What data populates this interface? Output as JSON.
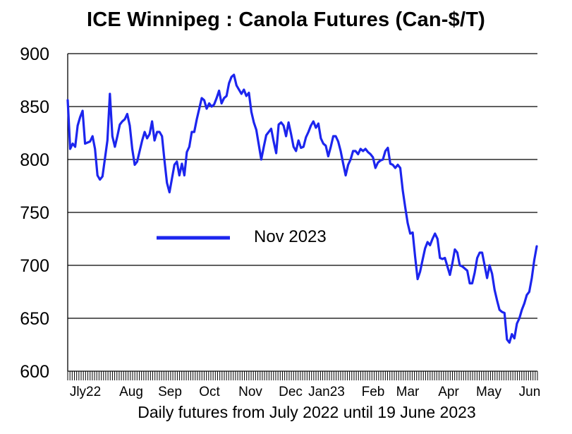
{
  "chart_data": {
    "type": "line",
    "title": "ICE Winnipeg : Canola Futures (Can-$/T)",
    "xlabel": "Daily futures from July 2022 until 19 June 2023",
    "ylabel": "",
    "ylim": [
      600,
      900
    ],
    "yticks": [
      "900",
      "850",
      "800",
      "750",
      "700",
      "650",
      "600"
    ],
    "xticks": [
      "Jly22",
      "Aug",
      "Sep",
      "Oct",
      "Nov",
      "Dec",
      "Jan23",
      "Feb",
      "Mar",
      "Apr",
      "May",
      "Jun"
    ],
    "grid": true,
    "legend_position": "center-left",
    "series": [
      {
        "name": "Nov 2023",
        "color": "#1c25ee",
        "values": [
          856,
          810,
          815,
          812,
          832,
          840,
          846,
          815,
          816,
          817,
          822,
          810,
          785,
          781,
          784,
          801,
          818,
          862,
          822,
          812,
          822,
          833,
          836,
          838,
          843,
          832,
          810,
          795,
          798,
          808,
          818,
          826,
          820,
          824,
          836,
          818,
          826,
          826,
          822,
          799,
          778,
          769,
          782,
          795,
          798,
          785,
          796,
          785,
          807,
          812,
          826,
          826,
          838,
          848,
          858,
          856,
          848,
          853,
          850,
          852,
          858,
          865,
          853,
          858,
          860,
          872,
          878,
          880,
          870,
          866,
          862,
          866,
          860,
          863,
          845,
          835,
          828,
          814,
          800,
          812,
          823,
          826,
          829,
          817,
          806,
          833,
          835,
          832,
          822,
          835,
          824,
          812,
          808,
          818,
          811,
          812,
          821,
          826,
          832,
          836,
          830,
          834,
          820,
          815,
          813,
          803,
          812,
          822,
          822,
          817,
          808,
          796,
          785,
          795,
          800,
          808,
          808,
          805,
          810,
          808,
          810,
          807,
          805,
          802,
          792,
          797,
          799,
          800,
          808,
          811,
          796,
          795,
          792,
          795,
          792,
          771,
          755,
          740,
          730,
          731,
          708,
          687,
          694,
          705,
          716,
          722,
          719,
          725,
          730,
          725,
          707,
          706,
          707,
          699,
          691,
          702,
          715,
          712,
          700,
          699,
          697,
          695,
          683,
          683,
          693,
          707,
          712,
          712,
          700,
          688,
          700,
          692,
          677,
          667,
          658,
          656,
          655,
          630,
          627,
          635,
          631,
          645,
          650,
          658,
          664,
          672,
          675,
          688,
          705,
          718
        ]
      }
    ]
  }
}
